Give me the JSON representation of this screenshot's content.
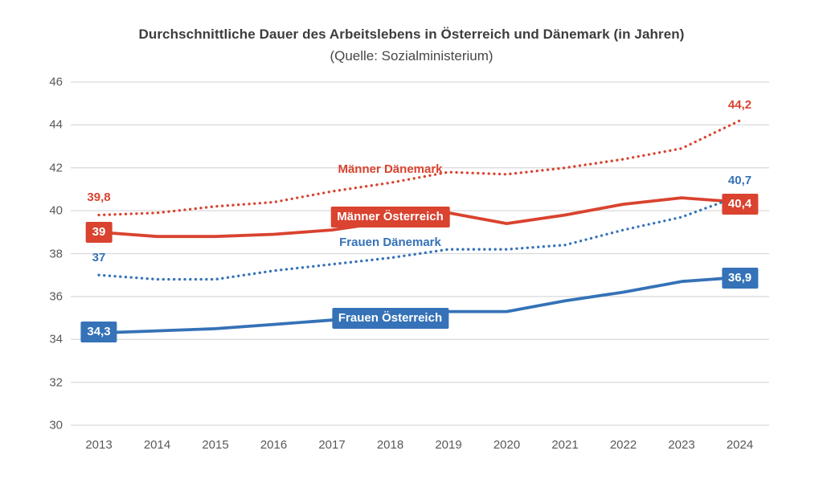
{
  "title": "Durchschnittliche Dauer des Arbeitslebens in Österreich und Dänemark (in Jahren)",
  "subtitle": "(Quelle: Sozialministerium)",
  "colors": {
    "red": "#d9432f",
    "blue": "#3572b7",
    "grid": "#d9d9d9",
    "axis_text": "#595959",
    "title_text": "#3d3d3d",
    "background": "#ffffff",
    "boxed_label_text": "#ffffff"
  },
  "chart_data": {
    "type": "line",
    "title": "Durchschnittliche Dauer des Arbeitslebens in Österreich und Dänemark (in Jahren)",
    "subtitle": "(Quelle: Sozialministerium)",
    "x": [
      2013,
      2014,
      2015,
      2016,
      2017,
      2018,
      2019,
      2020,
      2021,
      2022,
      2023,
      2024
    ],
    "xlabel": "",
    "ylabel": "",
    "ylim": [
      30,
      46
    ],
    "y_ticks": [
      30,
      32,
      34,
      36,
      38,
      40,
      42,
      44,
      46
    ],
    "grid": "horizontal",
    "legend_position": "inline-labels",
    "series": [
      {
        "name": "Männer Dänemark",
        "color_key": "red",
        "line_style": "dotted",
        "values": [
          39.8,
          39.9,
          40.2,
          40.4,
          40.9,
          41.3,
          41.8,
          41.7,
          42.0,
          42.4,
          42.9,
          44.2
        ]
      },
      {
        "name": "Männer Österreich",
        "color_key": "red",
        "line_style": "solid",
        "values": [
          39.0,
          38.8,
          38.8,
          38.9,
          39.1,
          39.5,
          39.9,
          39.4,
          39.8,
          40.3,
          40.6,
          40.4
        ]
      },
      {
        "name": "Frauen Dänemark",
        "color_key": "blue",
        "line_style": "dotted",
        "values": [
          37.0,
          36.8,
          36.8,
          37.2,
          37.5,
          37.8,
          38.2,
          38.2,
          38.4,
          39.1,
          39.7,
          40.7
        ]
      },
      {
        "name": "Frauen Österreich",
        "color_key": "blue",
        "line_style": "solid",
        "values": [
          34.3,
          34.4,
          34.5,
          34.7,
          34.9,
          35.1,
          35.3,
          35.3,
          35.8,
          36.2,
          36.7,
          36.9
        ]
      }
    ],
    "series_labels": [
      {
        "text": "Männer Dänemark",
        "boxed": false,
        "color_key": "red",
        "year": 2018,
        "value": 41.9
      },
      {
        "text": "Männer Österreich",
        "boxed": true,
        "color_key": "red",
        "year": 2018,
        "value": 39.7
      },
      {
        "text": "Frauen Dänemark",
        "boxed": false,
        "color_key": "blue",
        "year": 2018,
        "value": 38.5
      },
      {
        "text": "Frauen Österreich",
        "boxed": true,
        "color_key": "blue",
        "year": 2018,
        "value": 35.0
      }
    ],
    "point_labels": [
      {
        "text": "39,8",
        "boxed": false,
        "color_key": "red",
        "year": 2013,
        "value": 40.6
      },
      {
        "text": "39",
        "boxed": true,
        "color_key": "red",
        "year": 2013,
        "value": 39.0
      },
      {
        "text": "37",
        "boxed": false,
        "color_key": "blue",
        "year": 2013,
        "value": 37.8
      },
      {
        "text": "34,3",
        "boxed": true,
        "color_key": "blue",
        "year": 2013,
        "value": 34.35
      },
      {
        "text": "44,2",
        "boxed": false,
        "color_key": "red",
        "year": 2024,
        "value": 44.9
      },
      {
        "text": "40,7",
        "boxed": false,
        "color_key": "blue",
        "year": 2024,
        "value": 41.4
      },
      {
        "text": "40,4",
        "boxed": true,
        "color_key": "red",
        "year": 2024,
        "value": 40.3
      },
      {
        "text": "36,9",
        "boxed": true,
        "color_key": "blue",
        "year": 2024,
        "value": 36.85
      }
    ]
  }
}
